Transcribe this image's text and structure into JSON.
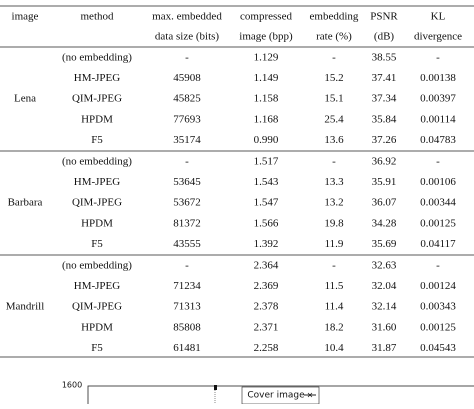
{
  "table": {
    "columns": [
      {
        "lines": [
          "image"
        ]
      },
      {
        "lines": [
          "method"
        ]
      },
      {
        "lines": [
          "max. embedded",
          "data size (bits)"
        ]
      },
      {
        "lines": [
          "compressed",
          "image (bpp)"
        ]
      },
      {
        "lines": [
          "embedding",
          "rate (%)"
        ]
      },
      {
        "lines": [
          "PSNR",
          "(dB)"
        ]
      },
      {
        "lines": [
          "KL",
          "divergence"
        ]
      }
    ],
    "groups": [
      {
        "image": "Lena",
        "rows": [
          [
            "(no embedding)",
            "-",
            "1.129",
            "-",
            "38.55",
            "-"
          ],
          [
            "HM-JPEG",
            "45908",
            "1.149",
            "15.2",
            "37.41",
            "0.00138"
          ],
          [
            "QIM-JPEG",
            "45825",
            "1.158",
            "15.1",
            "37.34",
            "0.00397"
          ],
          [
            "HPDM",
            "77693",
            "1.168",
            "25.4",
            "35.84",
            "0.00114"
          ],
          [
            "F5",
            "35174",
            "0.990",
            "13.6",
            "37.26",
            "0.04783"
          ]
        ]
      },
      {
        "image": "Barbara",
        "rows": [
          [
            "(no embedding)",
            "-",
            "1.517",
            "-",
            "36.92",
            "-"
          ],
          [
            "HM-JPEG",
            "53645",
            "1.543",
            "13.3",
            "35.91",
            "0.00106"
          ],
          [
            "QIM-JPEG",
            "53672",
            "1.547",
            "13.2",
            "36.07",
            "0.00344"
          ],
          [
            "HPDM",
            "81372",
            "1.566",
            "19.8",
            "34.28",
            "0.00125"
          ],
          [
            "F5",
            "43555",
            "1.392",
            "11.9",
            "35.69",
            "0.04117"
          ]
        ]
      },
      {
        "image": "Mandrill",
        "rows": [
          [
            "(no embedding)",
            "-",
            "2.364",
            "-",
            "32.63",
            "-"
          ],
          [
            "HM-JPEG",
            "71234",
            "2.369",
            "11.5",
            "32.04",
            "0.00124"
          ],
          [
            "QIM-JPEG",
            "71313",
            "2.378",
            "11.4",
            "32.14",
            "0.00343"
          ],
          [
            "HPDM",
            "85808",
            "2.371",
            "18.2",
            "31.60",
            "0.00125"
          ],
          [
            "F5",
            "61481",
            "2.258",
            "10.4",
            "31.87",
            "0.04543"
          ]
        ]
      }
    ]
  },
  "figure": {
    "ytick": "1600",
    "legend": "Cover image"
  }
}
